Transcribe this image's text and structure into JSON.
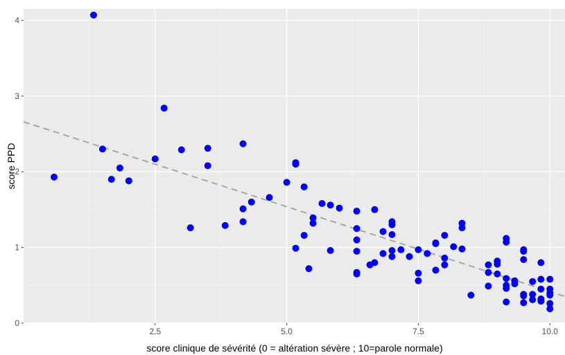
{
  "chart_data": {
    "type": "scatter",
    "title": "",
    "xlabel": "score clinique de sévérité (0 = altération sévère ; 10=parole normale)",
    "ylabel": "score PPD",
    "xlim": [
      0.0,
      10.3
    ],
    "ylim": [
      0.0,
      4.15
    ],
    "x_ticks": [
      2.5,
      5.0,
      7.5,
      10.0
    ],
    "x_tick_labels": [
      "2.5",
      "5.0",
      "7.5",
      "10.0"
    ],
    "y_ticks": [
      0,
      1,
      2,
      3,
      4
    ],
    "y_tick_labels": [
      "0",
      "1",
      "2",
      "3",
      "4"
    ],
    "grid": true,
    "colors": {
      "panel": "#ebebeb",
      "grid_major": "#ffffff",
      "grid_minor": "#f5f5f5",
      "points": "#0000ff",
      "trend": "#a6a6a6",
      "tick_label": "#4d4d4d",
      "axis_title": "#000000"
    },
    "trend_line": {
      "style": "dashed",
      "x": [
        0.0,
        10.3
      ],
      "y": [
        2.66,
        0.35
      ]
    },
    "series": [
      {
        "x": [
          0.58,
          1.33,
          1.5,
          1.67,
          1.83,
          2.0,
          2.5,
          2.67,
          3.0,
          3.17,
          3.5,
          3.5,
          3.83,
          4.17,
          4.17,
          4.17,
          4.33,
          4.67,
          5.0,
          5.17,
          5.17,
          5.17,
          5.33,
          5.33,
          5.42,
          5.5,
          5.5,
          5.67,
          5.83,
          5.83,
          6.0,
          6.33,
          6.33,
          6.33,
          6.33,
          6.33,
          6.33,
          6.58,
          6.67,
          6.67,
          6.83,
          6.83,
          7.0,
          7.0,
          7.0,
          7.0,
          7.0,
          7.17,
          7.33,
          7.5,
          7.5,
          7.5,
          7.67,
          7.83,
          7.83,
          7.83,
          8.0,
          8.0,
          8.0,
          8.17,
          8.33,
          8.33,
          8.33,
          8.5,
          8.83,
          8.83,
          8.83,
          9.0,
          9.0,
          9.0,
          9.17,
          9.17,
          9.17,
          9.17,
          9.17,
          9.17,
          9.33,
          9.33,
          9.5,
          9.5,
          9.5,
          9.5,
          9.5,
          9.5,
          9.67,
          9.67,
          9.67,
          9.83,
          9.83,
          9.83,
          9.83,
          9.83,
          10.0,
          10.0,
          10.0,
          10.0,
          10.0,
          10.0
        ],
        "y": [
          1.93,
          4.07,
          2.3,
          1.9,
          2.05,
          1.88,
          2.17,
          2.84,
          2.29,
          1.26,
          2.31,
          2.08,
          1.29,
          2.37,
          1.51,
          1.34,
          1.6,
          1.66,
          1.86,
          2.12,
          2.1,
          0.99,
          1.8,
          1.16,
          0.72,
          1.39,
          1.32,
          1.58,
          1.56,
          0.96,
          1.52,
          1.48,
          1.25,
          1.1,
          0.95,
          0.67,
          0.65,
          0.77,
          1.5,
          0.8,
          1.21,
          0.92,
          1.34,
          1.3,
          1.17,
          0.96,
          0.88,
          0.97,
          0.88,
          0.97,
          0.66,
          0.56,
          0.92,
          1.06,
          1.05,
          0.7,
          1.16,
          0.86,
          0.77,
          1.01,
          1.32,
          1.26,
          0.98,
          0.37,
          0.77,
          0.67,
          0.49,
          0.82,
          0.78,
          0.65,
          1.12,
          1.07,
          0.59,
          0.5,
          0.46,
          0.28,
          0.56,
          0.52,
          0.97,
          0.95,
          0.84,
          0.38,
          0.36,
          0.27,
          0.55,
          0.38,
          0.31,
          0.8,
          0.58,
          0.45,
          0.32,
          0.29,
          0.58,
          0.45,
          0.4,
          0.37,
          0.26,
          0.19
        ]
      }
    ]
  }
}
